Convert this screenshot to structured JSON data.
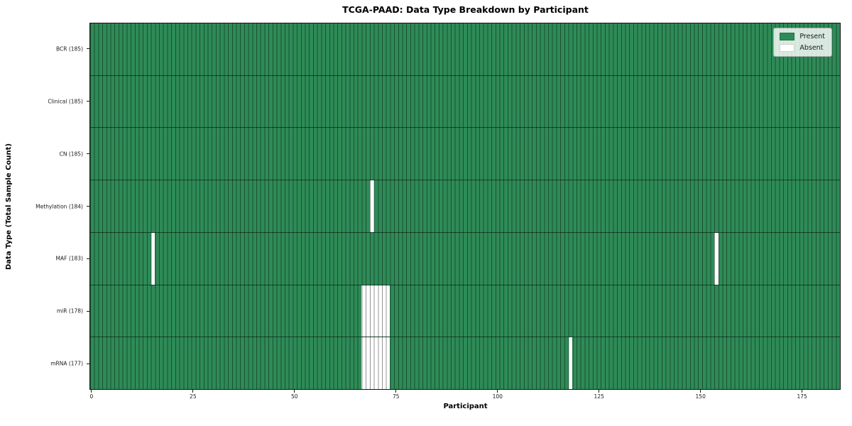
{
  "chart_data": {
    "type": "heatmap",
    "title": "TCGA-PAAD: Data Type Breakdown by Participant",
    "xlabel": "Participant",
    "ylabel": "Data Type (Total Sample Count)",
    "x_ticks": [
      0,
      25,
      50,
      75,
      100,
      125,
      150,
      175
    ],
    "x_range": [
      -0.5,
      184.5
    ],
    "n_participants": 185,
    "grid": false,
    "legend_position": "upper right",
    "colors": {
      "present": "#2e8b57",
      "absent": "#ffffff",
      "cell_edge": "rgba(0,0,0,0.42)",
      "row_separator": "rgba(0,0,0,0.52)",
      "spine": "#111111"
    },
    "legend": [
      {
        "label": "Present",
        "color": "#2e8b57"
      },
      {
        "label": "Absent",
        "color": "#ffffff"
      }
    ],
    "rows": [
      {
        "label": "BCR (185)",
        "data_type": "BCR",
        "total": 185,
        "absent_participants": []
      },
      {
        "label": "Clinical (185)",
        "data_type": "Clinical",
        "total": 185,
        "absent_participants": []
      },
      {
        "label": "CN (185)",
        "data_type": "CN",
        "total": 185,
        "absent_participants": []
      },
      {
        "label": "Methylation (184)",
        "data_type": "Methylation",
        "total": 184,
        "absent_participants": [
          69
        ]
      },
      {
        "label": "MAF (183)",
        "data_type": "MAF",
        "total": 183,
        "absent_participants": [
          15,
          154
        ]
      },
      {
        "label": "miR (178)",
        "data_type": "miR",
        "total": 178,
        "absent_participants": [
          67,
          68,
          69,
          70,
          71,
          72,
          73
        ]
      },
      {
        "label": "mRNA (177)",
        "data_type": "mRNA",
        "total": 177,
        "absent_participants": [
          67,
          68,
          69,
          70,
          71,
          72,
          73,
          118
        ]
      }
    ]
  }
}
